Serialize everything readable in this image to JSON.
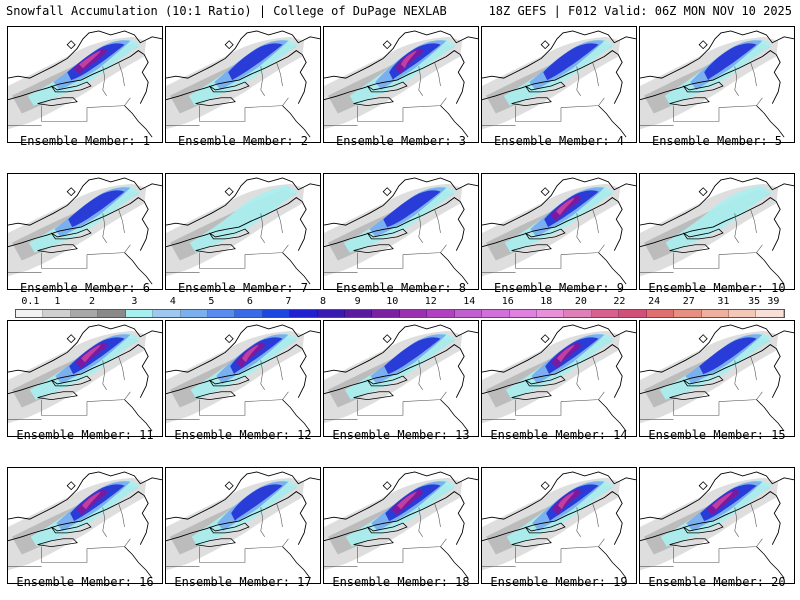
{
  "header": {
    "left": "Snowfall Accumulation (10:1 Ratio) | College of DuPage NEXLAB",
    "right": "18Z GEFS | F012 Valid: 06Z MON NOV 10 2025"
  },
  "members": [
    {
      "label": "Ensemble Member: 1",
      "intensity": 3
    },
    {
      "label": "Ensemble Member: 2",
      "intensity": 2
    },
    {
      "label": "Ensemble Member: 3",
      "intensity": 3
    },
    {
      "label": "Ensemble Member: 4",
      "intensity": 2
    },
    {
      "label": "Ensemble Member: 5",
      "intensity": 2
    },
    {
      "label": "Ensemble Member: 6",
      "intensity": 2
    },
    {
      "label": "Ensemble Member: 7",
      "intensity": 1
    },
    {
      "label": "Ensemble Member: 8",
      "intensity": 2
    },
    {
      "label": "Ensemble Member: 9",
      "intensity": 3
    },
    {
      "label": "Ensemble Member: 10",
      "intensity": 1
    },
    {
      "label": "Ensemble Member: 11",
      "intensity": 3
    },
    {
      "label": "Ensemble Member: 12",
      "intensity": 3
    },
    {
      "label": "Ensemble Member: 13",
      "intensity": 2
    },
    {
      "label": "Ensemble Member: 14",
      "intensity": 3
    },
    {
      "label": "Ensemble Member: 15",
      "intensity": 2
    },
    {
      "label": "Ensemble Member: 16",
      "intensity": 3
    },
    {
      "label": "Ensemble Member: 17",
      "intensity": 2
    },
    {
      "label": "Ensemble Member: 18",
      "intensity": 3
    },
    {
      "label": "Ensemble Member: 19",
      "intensity": 3
    },
    {
      "label": "Ensemble Member: 20",
      "intensity": 3
    }
  ],
  "colorbar": {
    "labels": [
      "0.1",
      "1",
      "2",
      "3",
      "4",
      "5",
      "6",
      "7",
      "8",
      "9",
      "10",
      "12",
      "14",
      "16",
      "18",
      "20",
      "22",
      "24",
      "27",
      "31",
      "35",
      "39"
    ],
    "colors": [
      "#f2f2f2",
      "#d0d0d0",
      "#a8a8a8",
      "#8a8a8a",
      "#a8f0f0",
      "#9ec8f0",
      "#7ab0f0",
      "#5a8cf0",
      "#3a6ae8",
      "#1a48e0",
      "#2020d0",
      "#3a1ab0",
      "#5a1aa0",
      "#7a20a0",
      "#9a30b0",
      "#b040c0",
      "#c060d0",
      "#d070d8",
      "#e080e0",
      "#e890d8",
      "#e080b8",
      "#d8608e",
      "#d05078",
      "#e07070",
      "#e89080",
      "#f0b0a0",
      "#f4c8b8",
      "#f8e0d8"
    ]
  },
  "colors": {
    "snow_light": "#a8f0f0",
    "snow_blue": "#7ab0f0",
    "snow_dark": "#2a3cd8",
    "snow_purple": "#7a1aa0",
    "snow_magenta": "#c040a0",
    "gray_light": "#d6d6d6",
    "gray_dark": "#a0a0a0"
  }
}
